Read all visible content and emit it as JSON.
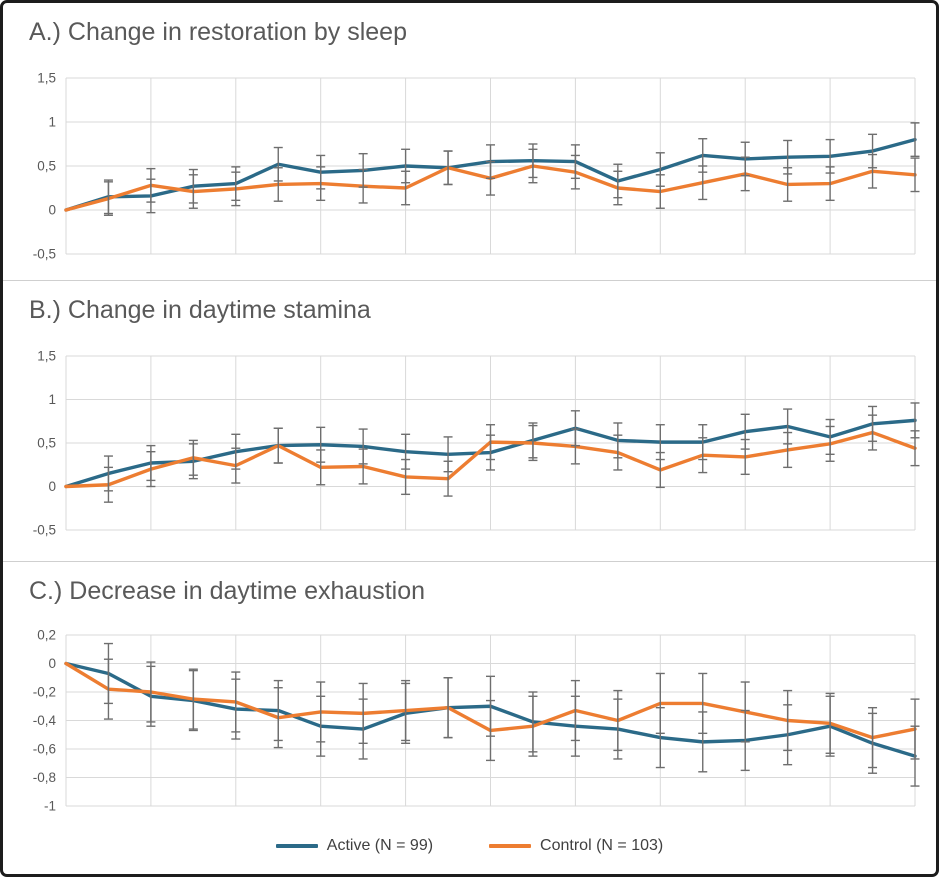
{
  "colors": {
    "active": "#2B6A88",
    "control": "#ED7D31",
    "error_bar": "#6E6E6E",
    "gridline": "#D9D9D9",
    "axis_text": "#595959",
    "title_text": "#595959",
    "frame_border": "#1C1C1C"
  },
  "legend": {
    "items": [
      {
        "name": "active",
        "label": "Active (N = 99)",
        "color": "#2B6A88"
      },
      {
        "name": "control",
        "label": "Control (N = 103)",
        "color": "#ED7D31"
      }
    ]
  },
  "chart_data": [
    {
      "id": "A",
      "type": "line",
      "title": "A.) Change in restoration by sleep",
      "ylim": [
        -0.5,
        1.5
      ],
      "ytick_values": [
        1.5,
        1,
        0.5,
        0,
        -0.5
      ],
      "ytick_labels": [
        "1,5",
        "1",
        "0,5",
        "0",
        "-0,5"
      ],
      "x": [
        0,
        1,
        2,
        3,
        4,
        5,
        6,
        7,
        8,
        9,
        10,
        11,
        12,
        13,
        14,
        15,
        16,
        17,
        18,
        19,
        20
      ],
      "xtick_labels_shown": false,
      "grid": true,
      "series": [
        {
          "name": "Active (N = 99)",
          "color": "#2B6A88",
          "error": 0.19,
          "values": [
            0,
            0.15,
            0.16,
            0.27,
            0.3,
            0.52,
            0.43,
            0.45,
            0.5,
            0.48,
            0.55,
            0.56,
            0.55,
            0.33,
            0.46,
            0.62,
            0.58,
            0.6,
            0.61,
            0.67,
            0.8
          ]
        },
        {
          "name": "Control (N = 103)",
          "color": "#ED7D31",
          "error": 0.19,
          "values": [
            0,
            0.13,
            0.28,
            0.21,
            0.24,
            0.29,
            0.3,
            0.27,
            0.25,
            0.48,
            0.36,
            0.5,
            0.43,
            0.25,
            0.21,
            0.31,
            0.41,
            0.29,
            0.3,
            0.44,
            0.4
          ]
        }
      ]
    },
    {
      "id": "B",
      "type": "line",
      "title": "B.) Change in daytime stamina",
      "ylim": [
        -0.5,
        1.5
      ],
      "ytick_values": [
        1.5,
        1,
        0.5,
        0,
        -0.5
      ],
      "ytick_labels": [
        "1,5",
        "1",
        "0,5",
        "0",
        "-0,5"
      ],
      "x": [
        0,
        1,
        2,
        3,
        4,
        5,
        6,
        7,
        8,
        9,
        10,
        11,
        12,
        13,
        14,
        15,
        16,
        17,
        18,
        19,
        20
      ],
      "xtick_labels_shown": false,
      "grid": true,
      "series": [
        {
          "name": "Active (N = 99)",
          "color": "#2B6A88",
          "error": 0.2,
          "values": [
            0,
            0.15,
            0.27,
            0.29,
            0.4,
            0.47,
            0.48,
            0.46,
            0.4,
            0.37,
            0.39,
            0.53,
            0.67,
            0.53,
            0.51,
            0.51,
            0.63,
            0.69,
            0.57,
            0.72,
            0.76
          ]
        },
        {
          "name": "Control (N = 103)",
          "color": "#ED7D31",
          "error": 0.2,
          "values": [
            0,
            0.02,
            0.2,
            0.33,
            0.24,
            0.47,
            0.22,
            0.23,
            0.11,
            0.09,
            0.51,
            0.5,
            0.46,
            0.39,
            0.19,
            0.36,
            0.34,
            0.42,
            0.49,
            0.62,
            0.44
          ]
        }
      ]
    },
    {
      "id": "C",
      "type": "line",
      "title": "C.) Decrease in daytime exhaustion",
      "ylim": [
        -1.0,
        0.2
      ],
      "ytick_values": [
        0.2,
        0,
        -0.2,
        -0.4,
        -0.6,
        -0.8,
        -1
      ],
      "ytick_labels": [
        "0,2",
        "0",
        "-0,2",
        "-0,4",
        "-0,6",
        "-0,8",
        "-1"
      ],
      "x": [
        0,
        1,
        2,
        3,
        4,
        5,
        6,
        7,
        8,
        9,
        10,
        11,
        12,
        13,
        14,
        15,
        16,
        17,
        18,
        19,
        20
      ],
      "xtick_labels_shown": false,
      "grid": true,
      "series": [
        {
          "name": "Active (N = 99)",
          "color": "#2B6A88",
          "error": 0.21,
          "values": [
            0,
            -0.07,
            -0.23,
            -0.26,
            -0.32,
            -0.33,
            -0.44,
            -0.46,
            -0.35,
            -0.31,
            -0.3,
            -0.41,
            -0.44,
            -0.46,
            -0.52,
            -0.55,
            -0.54,
            -0.5,
            -0.44,
            -0.56,
            -0.65
          ]
        },
        {
          "name": "Control (N = 103)",
          "color": "#ED7D31",
          "error": 0.21,
          "values": [
            0,
            -0.18,
            -0.2,
            -0.25,
            -0.27,
            -0.38,
            -0.34,
            -0.35,
            -0.33,
            -0.31,
            -0.47,
            -0.44,
            -0.33,
            -0.4,
            -0.28,
            -0.28,
            -0.34,
            -0.4,
            -0.42,
            -0.52,
            -0.46
          ]
        }
      ]
    }
  ]
}
